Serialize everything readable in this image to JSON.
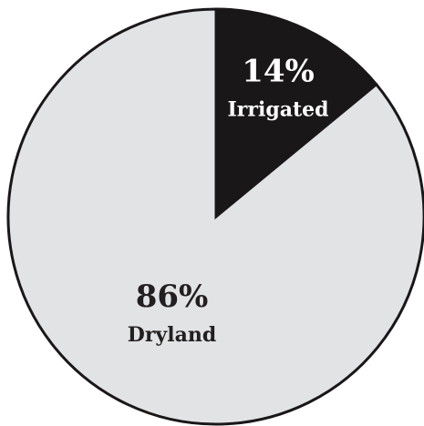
{
  "chart_data": {
    "type": "pie",
    "slices": [
      {
        "label": "Irrigated",
        "value": 14,
        "value_label": "14%",
        "color": "#1a1718",
        "text_color": "#ffffff"
      },
      {
        "label": "Dryland",
        "value": 86,
        "value_label": "86%",
        "color": "#e2e3e5",
        "text_color": "#231f20"
      }
    ],
    "start": "12 o'clock",
    "direction": "clockwise",
    "outline_color": "#1a1718",
    "legend": "none"
  }
}
